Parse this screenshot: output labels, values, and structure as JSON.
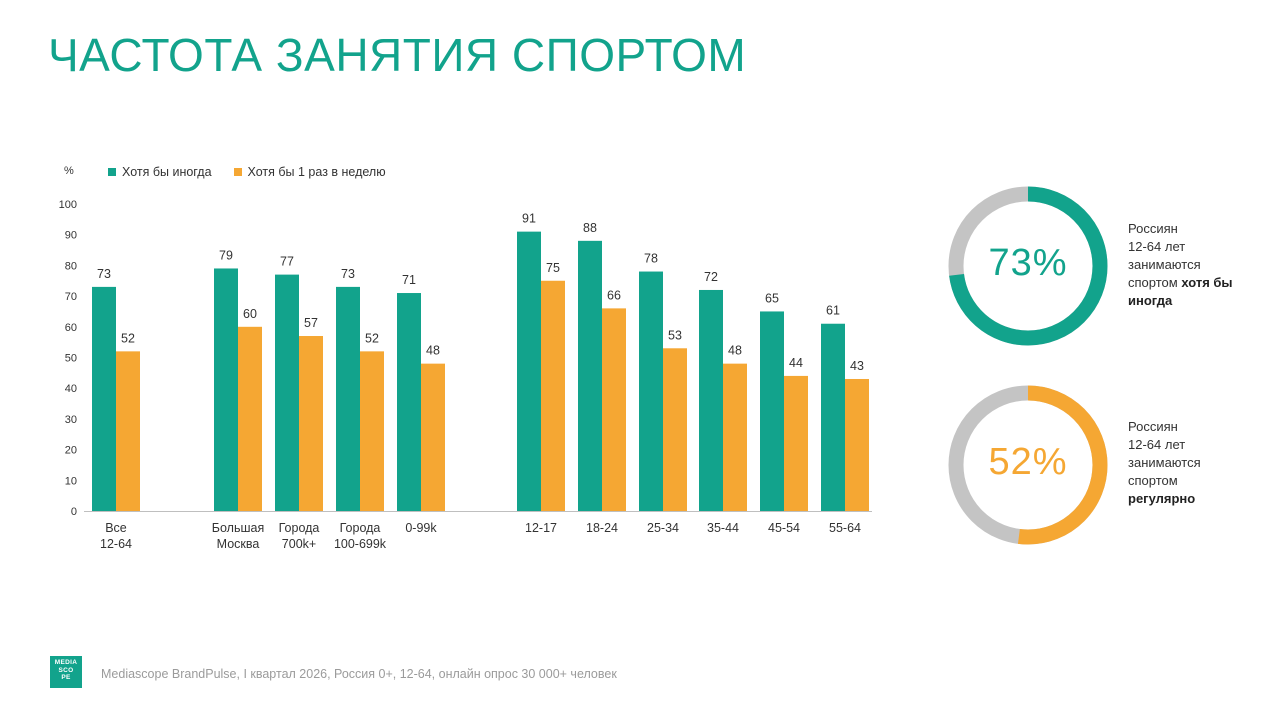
{
  "title": "ЧАСТОТА ЗАНЯТИЯ СПОРТОМ",
  "colors": {
    "accent": "#12a38c",
    "orange": "#f5a733",
    "grey": "#c4c4c4"
  },
  "chart_data": {
    "type": "bar",
    "unit_label": "%",
    "ylim": [
      0,
      100
    ],
    "yticks": [
      "0",
      "10",
      "20",
      "30",
      "40",
      "50",
      "60",
      "70",
      "80",
      "90",
      "100"
    ],
    "categories": [
      [
        "Все",
        "12-64"
      ],
      [
        "Большая",
        "Москва"
      ],
      [
        "Города",
        "700k+"
      ],
      [
        "Города",
        "100-699k"
      ],
      [
        "0-99k"
      ],
      [
        "12-17"
      ],
      [
        "18-24"
      ],
      [
        "25-34"
      ],
      [
        "35-44"
      ],
      [
        "45-54"
      ],
      [
        "55-64"
      ]
    ],
    "series": [
      {
        "name": "Хотя бы иногда",
        "color": "#12a38c",
        "values": [
          73,
          79,
          77,
          73,
          71,
          91,
          88,
          78,
          72,
          65,
          61
        ]
      },
      {
        "name": "Хотя бы 1 раз в неделю",
        "color": "#f5a733",
        "values": [
          52,
          60,
          57,
          52,
          48,
          75,
          66,
          53,
          48,
          44,
          43
        ]
      }
    ],
    "legend_position": "top-left",
    "grid": false
  },
  "donuts": [
    {
      "value": 73,
      "label": "73%",
      "color": "#12a38c",
      "caption_lines": [
        "Россиян",
        "12-64 лет",
        "занимаются",
        "спортом "
      ],
      "caption_bold": "хотя бы иногда"
    },
    {
      "value": 52,
      "label": "52%",
      "color": "#f5a733",
      "caption_lines": [
        "Россиян",
        "12-64 лет",
        "занимаются",
        "спортом"
      ],
      "caption_bold": "регулярно"
    }
  ],
  "footer": {
    "logo_text": "MEDIA SCOPE",
    "source": "Mediascope BrandPulse, I квартал 2026, Россия 0+, 12-64, онлайн опрос 30 000+ человек"
  }
}
